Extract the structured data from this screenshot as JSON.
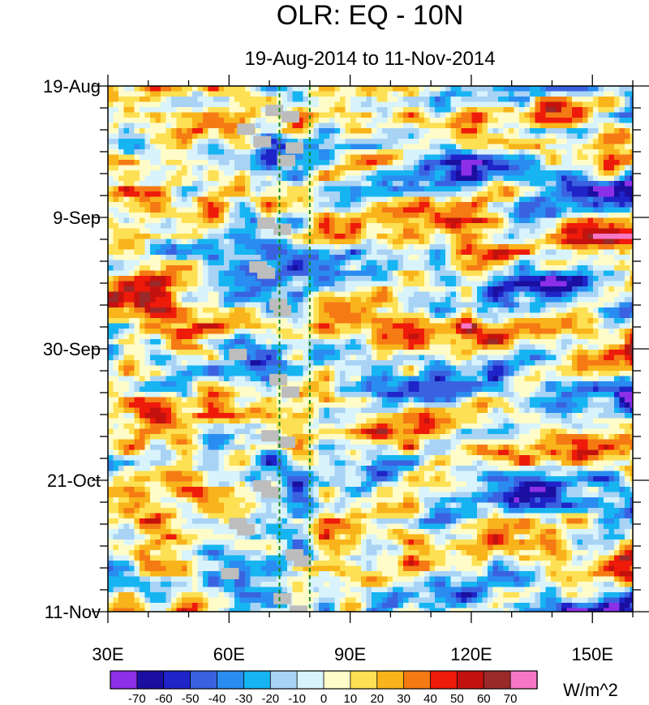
{
  "chart_data": {
    "type": "heatmap",
    "title": "OLR: EQ - 10N",
    "subtitle": "19-Aug-2014 to 11-Nov-2014",
    "x_axis": {
      "range": [
        30,
        160
      ],
      "tick_values": [
        30,
        60,
        90,
        120,
        150
      ],
      "tick_labels": [
        "30E",
        "60E",
        "90E",
        "120E",
        "150E"
      ]
    },
    "y_axis": {
      "range_days": [
        0,
        84
      ],
      "tick_days": [
        0,
        21,
        42,
        63,
        84
      ],
      "tick_labels": [
        "19-Aug",
        "9-Sep",
        "30-Sep",
        "21-Oct",
        "11-Nov"
      ],
      "direction": "top-to-bottom"
    },
    "reference_lines_lon": [
      72.5,
      80
    ],
    "reference_line_color": "#1a8a1a",
    "colorbar": {
      "units": "W/m^2",
      "levels": [
        -70,
        -60,
        -50,
        -40,
        -30,
        -20,
        -10,
        0,
        10,
        20,
        30,
        40,
        50,
        60,
        70
      ],
      "level_labels": [
        "-70",
        "-60",
        "-50",
        "-40",
        "-30",
        "-20",
        "-10",
        "0",
        "10",
        "20",
        "30",
        "40",
        "50",
        "60",
        "70"
      ],
      "colors": [
        "#8c2fe8",
        "#1a0fa0",
        "#1f24c8",
        "#3a62e0",
        "#2a8cf0",
        "#17b4f2",
        "#a9d3f5",
        "#d8f3fb",
        "#fffcc9",
        "#fde053",
        "#f8b41a",
        "#f57a14",
        "#ee1a0a",
        "#c3120e",
        "#9a2a2a",
        "#f777c7"
      ]
    },
    "missing_color": "#bdbdbd",
    "description": "Hovmoller diagram of OLR anomalies averaged EQ-10N, longitude vs time"
  }
}
